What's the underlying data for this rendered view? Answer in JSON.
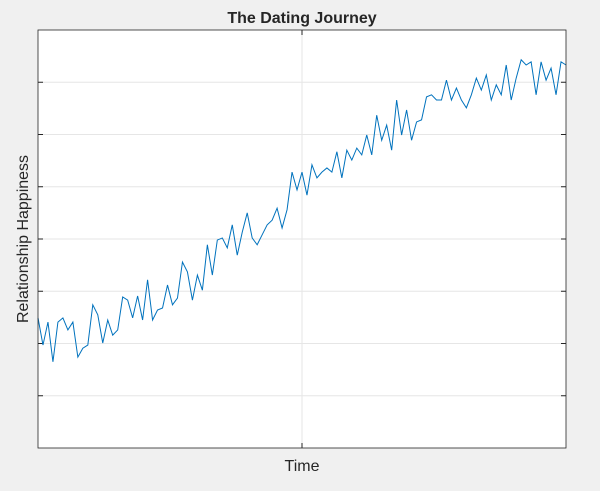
{
  "chart_data": {
    "type": "line",
    "title": "The Dating Journey",
    "x_label": "Time",
    "y_label": "Relationship Happiness",
    "x": [
      0,
      1,
      2,
      3,
      4,
      5,
      6,
      7,
      8,
      9,
      10,
      11,
      12,
      13,
      14,
      15,
      16,
      17,
      18,
      19,
      20,
      21,
      22,
      23,
      24,
      25,
      26,
      27,
      28,
      29,
      30,
      31,
      32,
      33,
      34,
      35,
      36,
      37,
      38,
      39,
      40,
      41,
      42,
      43,
      44,
      45,
      46,
      47,
      48,
      49,
      50,
      51,
      52,
      53,
      54,
      55,
      56,
      57,
      58,
      59,
      60,
      61,
      62,
      63,
      64,
      65,
      66,
      67,
      68,
      69,
      70,
      71,
      72,
      73,
      74,
      75,
      76,
      77,
      78,
      79,
      80,
      81,
      82,
      83,
      84,
      85,
      86,
      87,
      88,
      89,
      90,
      91,
      92,
      93,
      94,
      95,
      96,
      97,
      98,
      99,
      100,
      101,
      102,
      103,
      104,
      105,
      106
    ],
    "values": [
      2.49,
      1.97,
      2.41,
      1.65,
      2.41,
      2.49,
      2.26,
      2.41,
      1.74,
      1.91,
      1.97,
      2.74,
      2.55,
      2.01,
      2.45,
      2.16,
      2.26,
      2.89,
      2.83,
      2.49,
      2.91,
      2.45,
      3.22,
      2.45,
      2.64,
      2.68,
      3.12,
      2.74,
      2.87,
      3.56,
      3.37,
      2.83,
      3.31,
      3.02,
      3.89,
      3.31,
      3.98,
      4.02,
      3.83,
      4.27,
      3.69,
      4.13,
      4.5,
      4.02,
      3.89,
      4.08,
      4.27,
      4.36,
      4.59,
      4.21,
      4.56,
      5.28,
      4.94,
      5.28,
      4.84,
      5.42,
      5.17,
      5.28,
      5.36,
      5.28,
      5.67,
      5.17,
      5.7,
      5.51,
      5.74,
      5.61,
      5.99,
      5.61,
      6.37,
      5.89,
      6.18,
      5.7,
      6.66,
      5.99,
      6.47,
      5.89,
      6.24,
      6.28,
      6.72,
      6.76,
      6.66,
      6.66,
      7.04,
      6.66,
      6.89,
      6.66,
      6.51,
      6.76,
      7.08,
      6.85,
      7.14,
      6.66,
      6.95,
      6.76,
      7.33,
      6.66,
      7.08,
      7.43,
      7.33,
      7.39,
      6.76,
      7.39,
      7.04,
      7.27,
      6.76,
      7.39,
      7.33
    ],
    "color": "#0072bd",
    "xlim": [
      0,
      106
    ],
    "xticks": [
      53
    ],
    "ylim": [
      0,
      8
    ],
    "yticks": [
      1,
      2,
      3,
      4,
      5,
      6,
      7
    ],
    "grid": true
  }
}
